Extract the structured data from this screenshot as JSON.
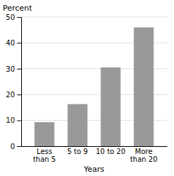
{
  "chart_data": {
    "type": "bar",
    "title": "Percent",
    "x_label": "Years",
    "categories": [
      "Less\nthan 5",
      "5 to 9",
      "10 to 20",
      "More\nthan 20"
    ],
    "values": [
      9.3,
      16.3,
      30.5,
      46.0
    ],
    "color": "#999999",
    "ylim": [
      0,
      50
    ],
    "yticks": [
      0,
      10,
      20,
      30,
      40,
      50
    ],
    "grid": true
  }
}
